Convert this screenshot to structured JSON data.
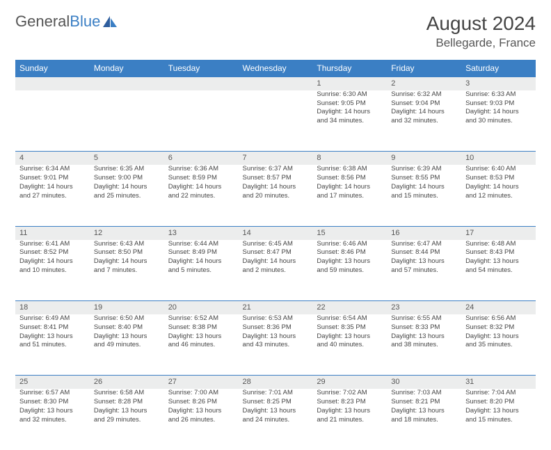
{
  "brand": {
    "part1": "General",
    "part2": "Blue"
  },
  "title": "August 2024",
  "location": "Bellegarde, France",
  "colors": {
    "header_bg": "#3b7fc4",
    "header_text": "#ffffff",
    "daynum_bg": "#eceded",
    "border_top": "#3b7fc4",
    "text": "#444444",
    "logo_gray": "#555555",
    "logo_blue": "#3b7fc4"
  },
  "weekdays": [
    "Sunday",
    "Monday",
    "Tuesday",
    "Wednesday",
    "Thursday",
    "Friday",
    "Saturday"
  ],
  "weeks": [
    {
      "days": [
        {
          "n": "",
          "lines": []
        },
        {
          "n": "",
          "lines": []
        },
        {
          "n": "",
          "lines": []
        },
        {
          "n": "",
          "lines": []
        },
        {
          "n": "1",
          "lines": [
            "Sunrise: 6:30 AM",
            "Sunset: 9:05 PM",
            "Daylight: 14 hours and 34 minutes."
          ]
        },
        {
          "n": "2",
          "lines": [
            "Sunrise: 6:32 AM",
            "Sunset: 9:04 PM",
            "Daylight: 14 hours and 32 minutes."
          ]
        },
        {
          "n": "3",
          "lines": [
            "Sunrise: 6:33 AM",
            "Sunset: 9:03 PM",
            "Daylight: 14 hours and 30 minutes."
          ]
        }
      ]
    },
    {
      "days": [
        {
          "n": "4",
          "lines": [
            "Sunrise: 6:34 AM",
            "Sunset: 9:01 PM",
            "Daylight: 14 hours and 27 minutes."
          ]
        },
        {
          "n": "5",
          "lines": [
            "Sunrise: 6:35 AM",
            "Sunset: 9:00 PM",
            "Daylight: 14 hours and 25 minutes."
          ]
        },
        {
          "n": "6",
          "lines": [
            "Sunrise: 6:36 AM",
            "Sunset: 8:59 PM",
            "Daylight: 14 hours and 22 minutes."
          ]
        },
        {
          "n": "7",
          "lines": [
            "Sunrise: 6:37 AM",
            "Sunset: 8:57 PM",
            "Daylight: 14 hours and 20 minutes."
          ]
        },
        {
          "n": "8",
          "lines": [
            "Sunrise: 6:38 AM",
            "Sunset: 8:56 PM",
            "Daylight: 14 hours and 17 minutes."
          ]
        },
        {
          "n": "9",
          "lines": [
            "Sunrise: 6:39 AM",
            "Sunset: 8:55 PM",
            "Daylight: 14 hours and 15 minutes."
          ]
        },
        {
          "n": "10",
          "lines": [
            "Sunrise: 6:40 AM",
            "Sunset: 8:53 PM",
            "Daylight: 14 hours and 12 minutes."
          ]
        }
      ]
    },
    {
      "days": [
        {
          "n": "11",
          "lines": [
            "Sunrise: 6:41 AM",
            "Sunset: 8:52 PM",
            "Daylight: 14 hours and 10 minutes."
          ]
        },
        {
          "n": "12",
          "lines": [
            "Sunrise: 6:43 AM",
            "Sunset: 8:50 PM",
            "Daylight: 14 hours and 7 minutes."
          ]
        },
        {
          "n": "13",
          "lines": [
            "Sunrise: 6:44 AM",
            "Sunset: 8:49 PM",
            "Daylight: 14 hours and 5 minutes."
          ]
        },
        {
          "n": "14",
          "lines": [
            "Sunrise: 6:45 AM",
            "Sunset: 8:47 PM",
            "Daylight: 14 hours and 2 minutes."
          ]
        },
        {
          "n": "15",
          "lines": [
            "Sunrise: 6:46 AM",
            "Sunset: 8:46 PM",
            "Daylight: 13 hours and 59 minutes."
          ]
        },
        {
          "n": "16",
          "lines": [
            "Sunrise: 6:47 AM",
            "Sunset: 8:44 PM",
            "Daylight: 13 hours and 57 minutes."
          ]
        },
        {
          "n": "17",
          "lines": [
            "Sunrise: 6:48 AM",
            "Sunset: 8:43 PM",
            "Daylight: 13 hours and 54 minutes."
          ]
        }
      ]
    },
    {
      "days": [
        {
          "n": "18",
          "lines": [
            "Sunrise: 6:49 AM",
            "Sunset: 8:41 PM",
            "Daylight: 13 hours and 51 minutes."
          ]
        },
        {
          "n": "19",
          "lines": [
            "Sunrise: 6:50 AM",
            "Sunset: 8:40 PM",
            "Daylight: 13 hours and 49 minutes."
          ]
        },
        {
          "n": "20",
          "lines": [
            "Sunrise: 6:52 AM",
            "Sunset: 8:38 PM",
            "Daylight: 13 hours and 46 minutes."
          ]
        },
        {
          "n": "21",
          "lines": [
            "Sunrise: 6:53 AM",
            "Sunset: 8:36 PM",
            "Daylight: 13 hours and 43 minutes."
          ]
        },
        {
          "n": "22",
          "lines": [
            "Sunrise: 6:54 AM",
            "Sunset: 8:35 PM",
            "Daylight: 13 hours and 40 minutes."
          ]
        },
        {
          "n": "23",
          "lines": [
            "Sunrise: 6:55 AM",
            "Sunset: 8:33 PM",
            "Daylight: 13 hours and 38 minutes."
          ]
        },
        {
          "n": "24",
          "lines": [
            "Sunrise: 6:56 AM",
            "Sunset: 8:32 PM",
            "Daylight: 13 hours and 35 minutes."
          ]
        }
      ]
    },
    {
      "days": [
        {
          "n": "25",
          "lines": [
            "Sunrise: 6:57 AM",
            "Sunset: 8:30 PM",
            "Daylight: 13 hours and 32 minutes."
          ]
        },
        {
          "n": "26",
          "lines": [
            "Sunrise: 6:58 AM",
            "Sunset: 8:28 PM",
            "Daylight: 13 hours and 29 minutes."
          ]
        },
        {
          "n": "27",
          "lines": [
            "Sunrise: 7:00 AM",
            "Sunset: 8:26 PM",
            "Daylight: 13 hours and 26 minutes."
          ]
        },
        {
          "n": "28",
          "lines": [
            "Sunrise: 7:01 AM",
            "Sunset: 8:25 PM",
            "Daylight: 13 hours and 24 minutes."
          ]
        },
        {
          "n": "29",
          "lines": [
            "Sunrise: 7:02 AM",
            "Sunset: 8:23 PM",
            "Daylight: 13 hours and 21 minutes."
          ]
        },
        {
          "n": "30",
          "lines": [
            "Sunrise: 7:03 AM",
            "Sunset: 8:21 PM",
            "Daylight: 13 hours and 18 minutes."
          ]
        },
        {
          "n": "31",
          "lines": [
            "Sunrise: 7:04 AM",
            "Sunset: 8:20 PM",
            "Daylight: 13 hours and 15 minutes."
          ]
        }
      ]
    }
  ]
}
